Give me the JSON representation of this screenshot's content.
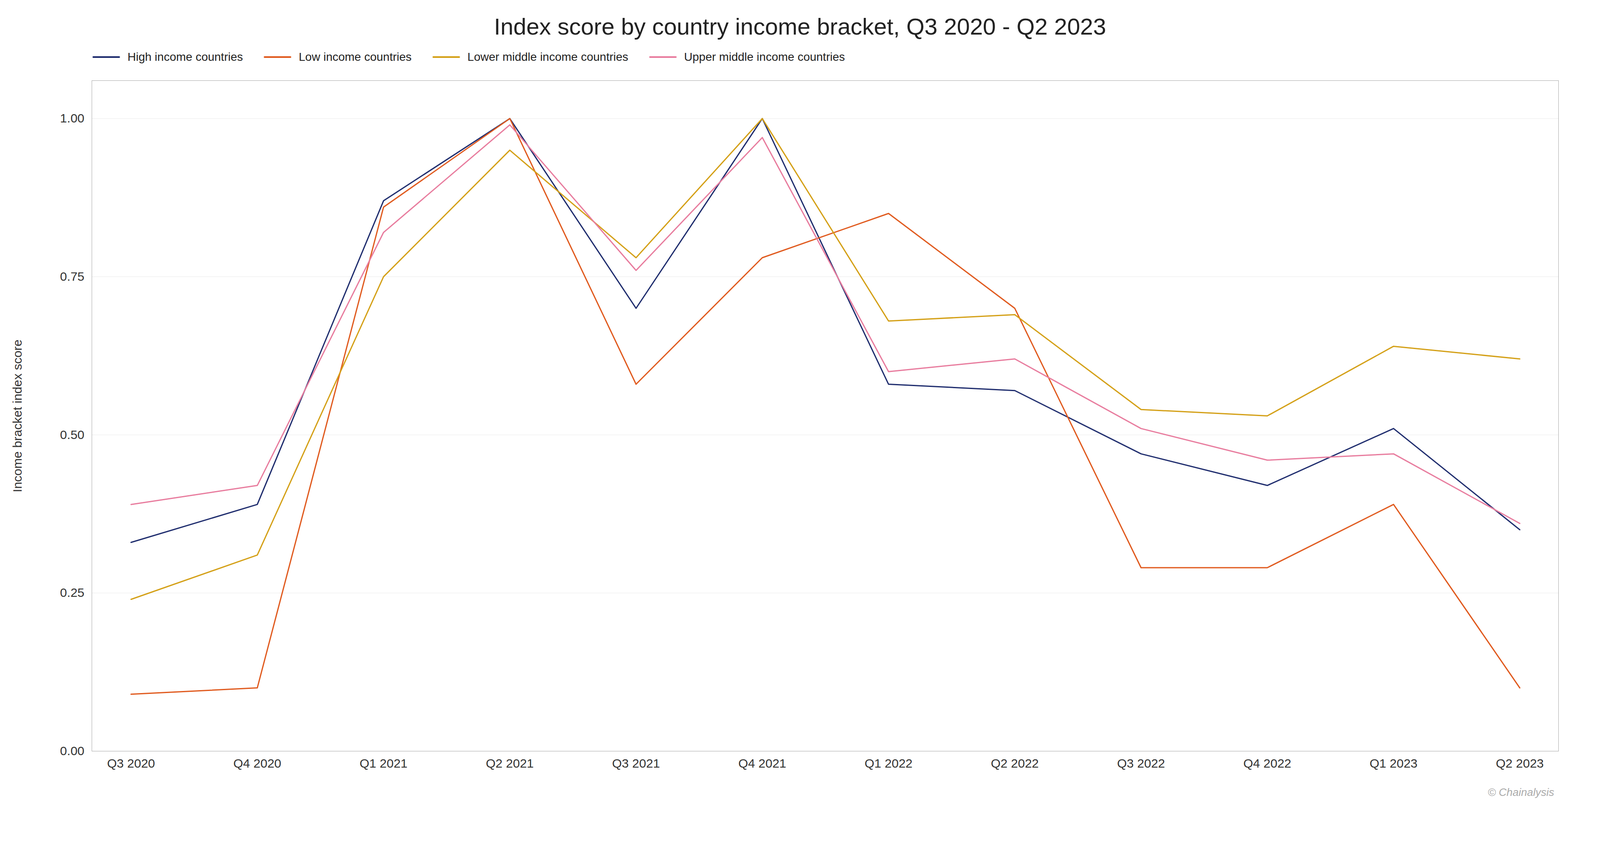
{
  "chart_data": {
    "type": "line",
    "title": "Index score by country income bracket, Q3 2020 - Q2 2023",
    "y_label": "Income bracket index score",
    "annotations": [
      "© Chainalysis"
    ],
    "categories": [
      "Q3 2020",
      "Q4 2020",
      "Q1 2021",
      "Q2 2021",
      "Q3 2021",
      "Q4 2021",
      "Q1 2022",
      "Q2 2022",
      "Q3 2022",
      "Q4 2022",
      "Q1 2023",
      "Q2 2023"
    ],
    "series": [
      {
        "name": "High income countries",
        "color": "#1f2d6e",
        "values": [
          0.33,
          0.39,
          0.87,
          1.0,
          0.7,
          1.0,
          0.58,
          0.57,
          0.47,
          0.42,
          0.51,
          0.35
        ]
      },
      {
        "name": "Low income countries",
        "color": "#e05a1e",
        "values": [
          0.09,
          0.1,
          0.86,
          1.0,
          0.58,
          0.78,
          0.85,
          0.7,
          0.29,
          0.29,
          0.39,
          0.1
        ]
      },
      {
        "name": "Lower middle income countries",
        "color": "#d4a017",
        "values": [
          0.24,
          0.31,
          0.75,
          0.95,
          0.78,
          1.0,
          0.68,
          0.69,
          0.54,
          0.53,
          0.64,
          0.62
        ]
      },
      {
        "name": "Upper middle income countries",
        "color": "#e87c9e",
        "values": [
          0.39,
          0.42,
          0.82,
          0.99,
          0.76,
          0.97,
          0.6,
          0.62,
          0.51,
          0.46,
          0.47,
          0.36
        ]
      }
    ],
    "ylim": [
      0.0,
      1.06
    ],
    "yticks": [
      {
        "value": 0.0,
        "label": "0.00"
      },
      {
        "value": 0.25,
        "label": "0.25"
      },
      {
        "value": 0.5,
        "label": "0.50"
      },
      {
        "value": 0.75,
        "label": "0.75"
      },
      {
        "value": 1.0,
        "label": "1.00"
      }
    ],
    "grid": true,
    "legend": "upper left"
  }
}
